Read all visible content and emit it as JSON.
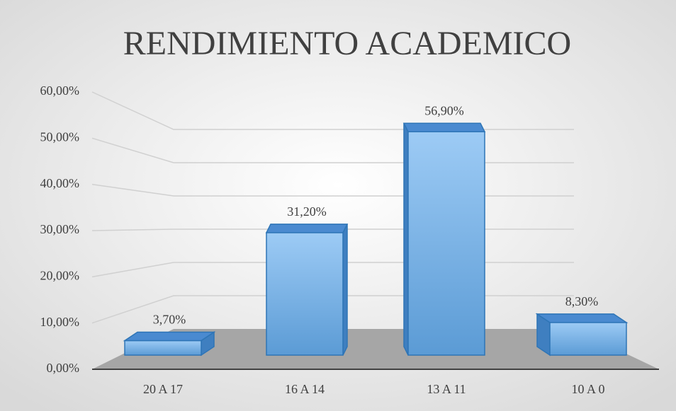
{
  "chart_data": {
    "type": "bar3d",
    "title": "RENDIMIENTO ACADEMICO",
    "categories": [
      "20 A 17",
      "16 A 14",
      "13 A 11",
      "10 A 0"
    ],
    "values": [
      3.7,
      31.2,
      56.9,
      8.3
    ],
    "value_labels": [
      "3,70%",
      "31,20%",
      "56,90%",
      "8,30%"
    ],
    "color": "#5b9bd5",
    "ylim": [
      0,
      60
    ],
    "yticks": [
      {
        "value": 0,
        "label": "0,00%"
      },
      {
        "value": 10,
        "label": "10,00%"
      },
      {
        "value": 20,
        "label": "20,00%"
      },
      {
        "value": 30,
        "label": "30,00%"
      },
      {
        "value": 40,
        "label": "40,00%"
      },
      {
        "value": 50,
        "label": "50,00%"
      },
      {
        "value": 60,
        "label": "60,00%"
      }
    ],
    "grid": true
  }
}
